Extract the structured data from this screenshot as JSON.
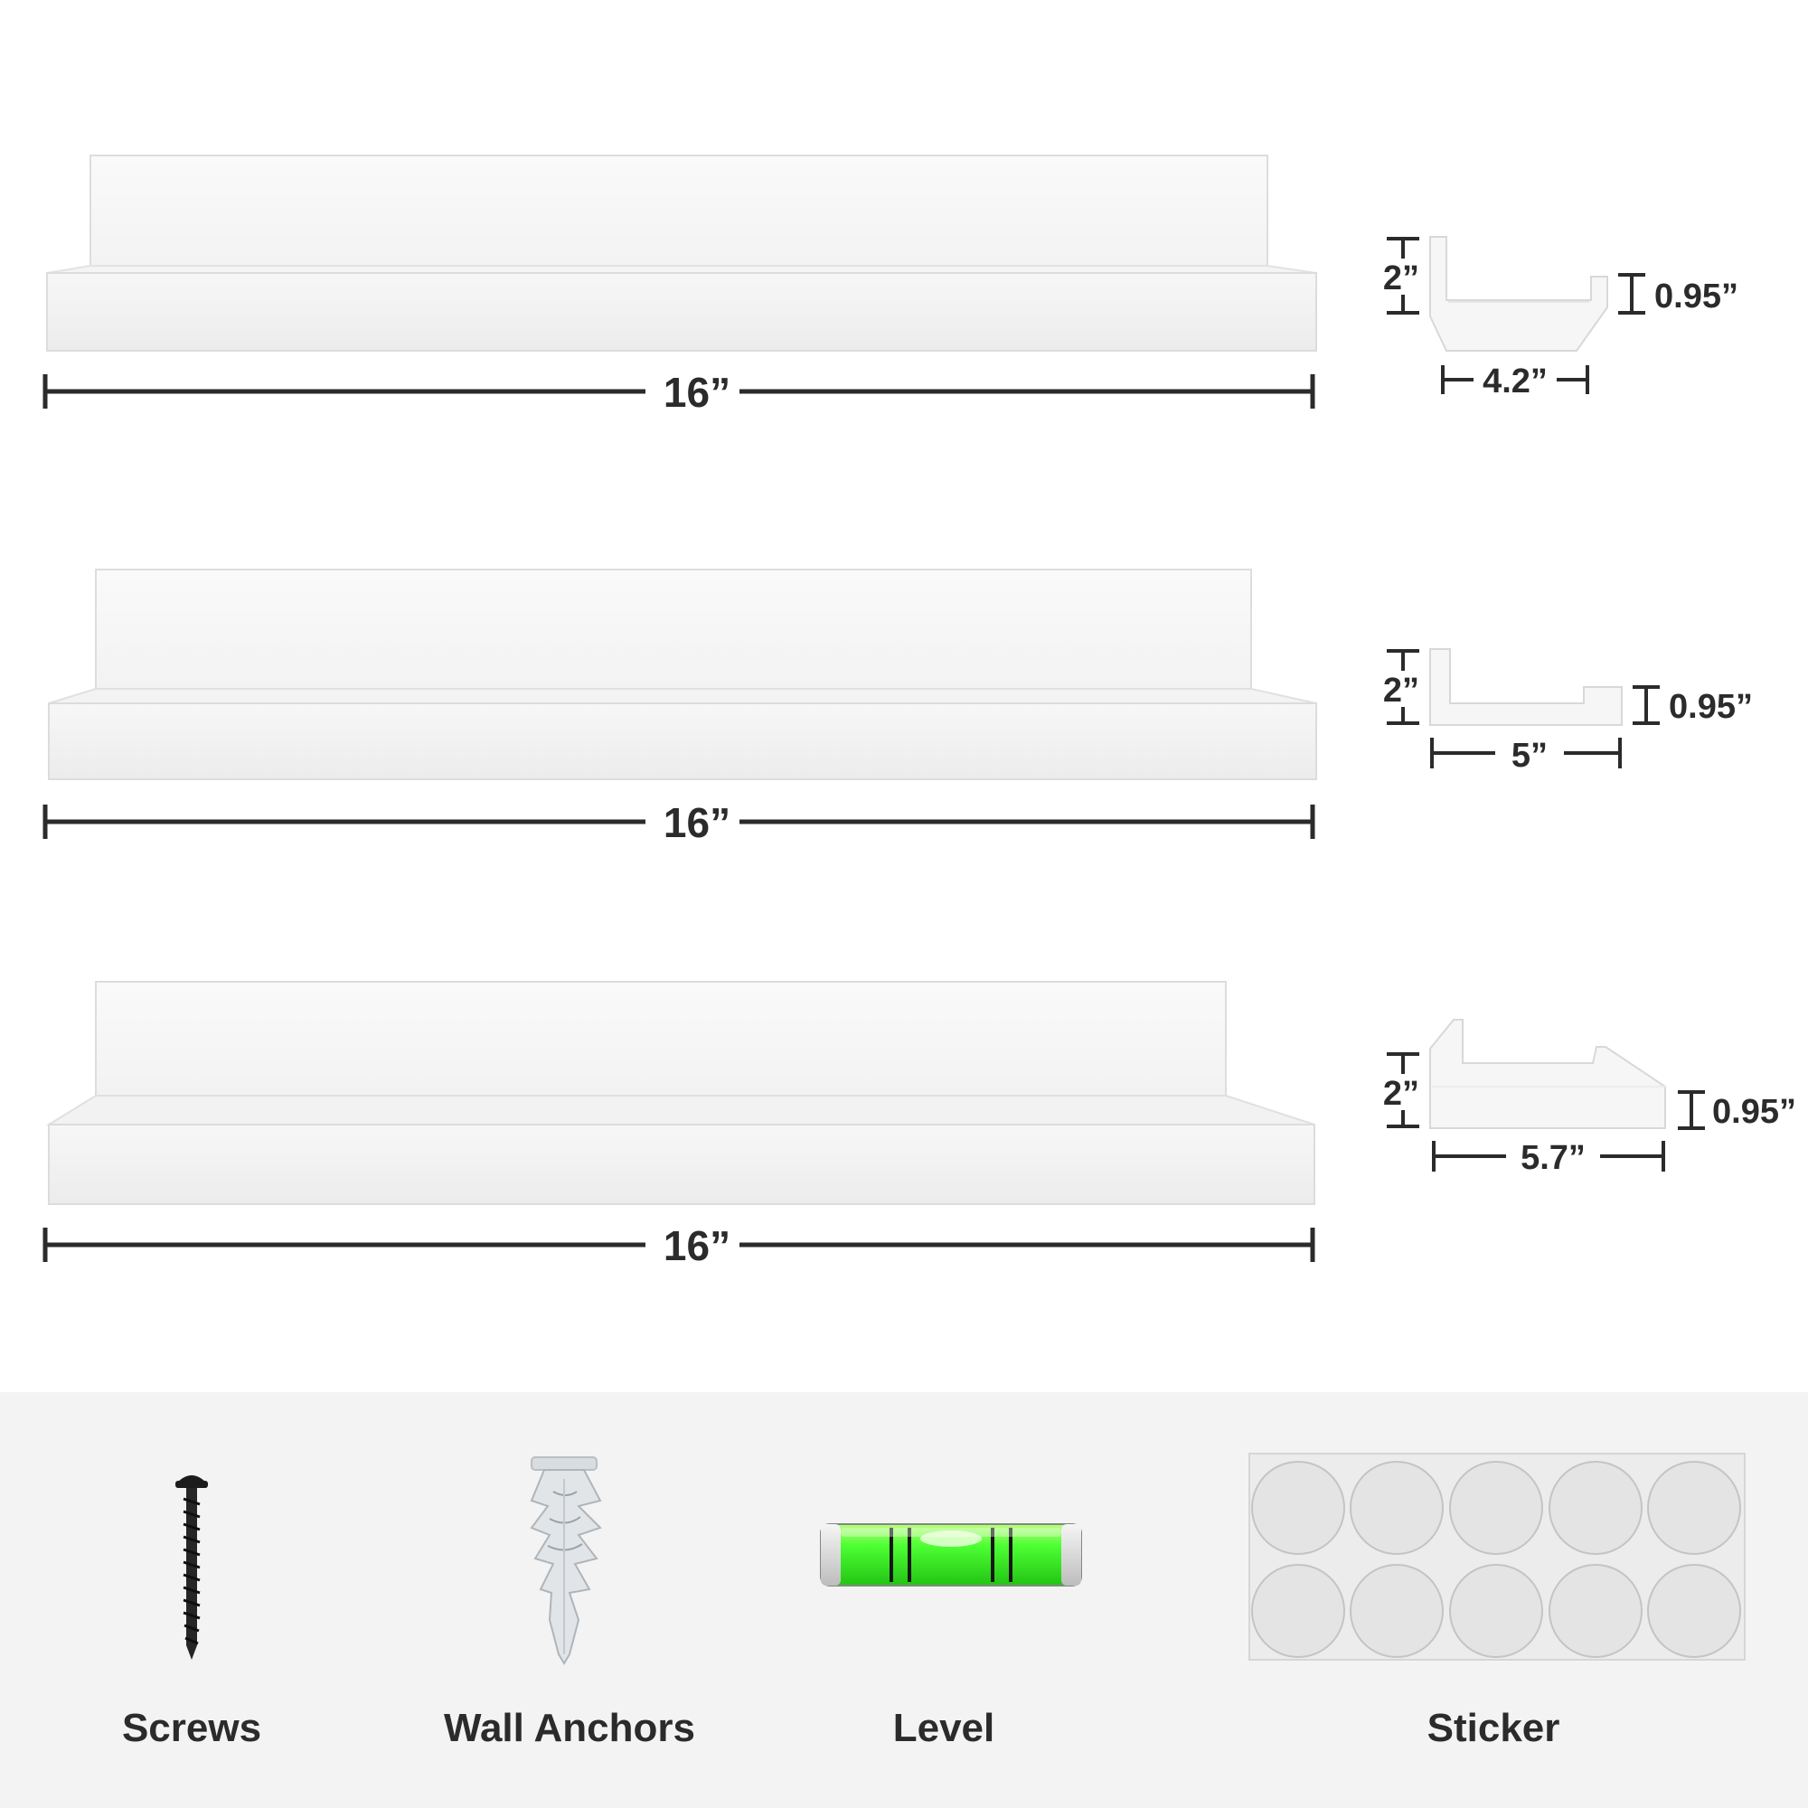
{
  "shelves": [
    {
      "length_label": "16”",
      "height_label": "2”",
      "lip_label": "0.95”",
      "depth_label": "4.2”"
    },
    {
      "length_label": "16”",
      "height_label": "2”",
      "lip_label": "0.95”",
      "depth_label": "5”"
    },
    {
      "length_label": "16”",
      "height_label": "2”",
      "lip_label": "0.95”",
      "depth_label": "5.7”"
    }
  ],
  "accessories": [
    {
      "label": "Screws",
      "icon": "screw-icon"
    },
    {
      "label": "Wall Anchors",
      "icon": "wall-anchor-icon"
    },
    {
      "label": "Level",
      "icon": "bubble-level-icon"
    },
    {
      "label": "Sticker",
      "icon": "sticker-sheet-icon"
    }
  ],
  "colors": {
    "background": "#ffffff",
    "accessory_panel": "#f3f3f3",
    "dimension_ink": "#2b2b2b",
    "shelf_white": "#ffffff",
    "level_green": "#3cff2a"
  }
}
